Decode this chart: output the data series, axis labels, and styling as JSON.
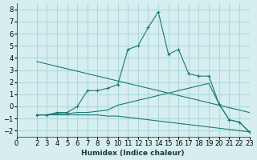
{
  "xlabel": "Humidex (Indice chaleur)",
  "ylabel": "",
  "background_color": "#d6eef0",
  "grid_color": "#b0d8dc",
  "line_color": "#1a7a6e",
  "xlim": [
    0,
    23
  ],
  "ylim": [
    -2.5,
    8.5
  ],
  "xticks": [
    0,
    2,
    3,
    4,
    5,
    6,
    7,
    8,
    9,
    10,
    11,
    12,
    13,
    14,
    15,
    16,
    17,
    18,
    19,
    20,
    21,
    22,
    23
  ],
  "yticks": [
    -2,
    -1,
    0,
    1,
    2,
    3,
    4,
    5,
    6,
    7,
    8
  ],
  "series": [
    {
      "x": [
        2,
        3,
        4,
        5,
        6,
        7,
        8,
        9,
        10,
        11,
        12,
        13,
        14,
        15,
        16,
        17,
        18,
        19,
        20,
        21,
        22,
        23
      ],
      "y": [
        3.7,
        3.5,
        3.3,
        3.1,
        2.9,
        2.7,
        2.5,
        2.3,
        2.1,
        1.9,
        1.7,
        1.5,
        1.3,
        1.1,
        0.9,
        0.7,
        0.5,
        0.3,
        0.1,
        -0.1,
        -0.3,
        -0.5
      ],
      "marker": null,
      "linestyle": "-"
    },
    {
      "x": [
        2,
        3,
        4,
        5,
        6,
        7,
        8,
        9,
        10,
        11,
        12,
        13,
        14,
        15,
        16,
        17,
        18,
        19,
        20,
        21,
        22,
        23
      ],
      "y": [
        -0.7,
        -0.7,
        -0.5,
        -0.5,
        0.0,
        1.3,
        1.3,
        1.5,
        1.8,
        4.7,
        5.0,
        6.5,
        7.8,
        4.3,
        4.7,
        2.7,
        2.5,
        2.5,
        0.2,
        -1.1,
        -1.3,
        -2.1
      ],
      "marker": "+",
      "linestyle": "-"
    },
    {
      "x": [
        2,
        3,
        4,
        5,
        6,
        7,
        8,
        9,
        10,
        11,
        12,
        13,
        14,
        15,
        16,
        17,
        18,
        19,
        20,
        21,
        22,
        23
      ],
      "y": [
        -0.7,
        -0.7,
        -0.6,
        -0.6,
        -0.5,
        -0.5,
        -0.4,
        -0.3,
        0.1,
        0.3,
        0.5,
        0.7,
        0.9,
        1.1,
        1.3,
        1.5,
        1.7,
        1.9,
        0.2,
        -1.1,
        -1.3,
        -2.1
      ],
      "marker": null,
      "linestyle": "-"
    },
    {
      "x": [
        2,
        3,
        4,
        5,
        6,
        7,
        8,
        9,
        10,
        11,
        12,
        13,
        14,
        15,
        16,
        17,
        18,
        19,
        20,
        21,
        22,
        23
      ],
      "y": [
        -0.7,
        -0.7,
        -0.7,
        -0.7,
        -0.7,
        -0.7,
        -0.7,
        -0.8,
        -0.8,
        -0.9,
        -1.0,
        -1.1,
        -1.2,
        -1.3,
        -1.4,
        -1.5,
        -1.6,
        -1.7,
        -1.8,
        -1.9,
        -2.0,
        -2.1
      ],
      "marker": null,
      "linestyle": "-"
    }
  ]
}
